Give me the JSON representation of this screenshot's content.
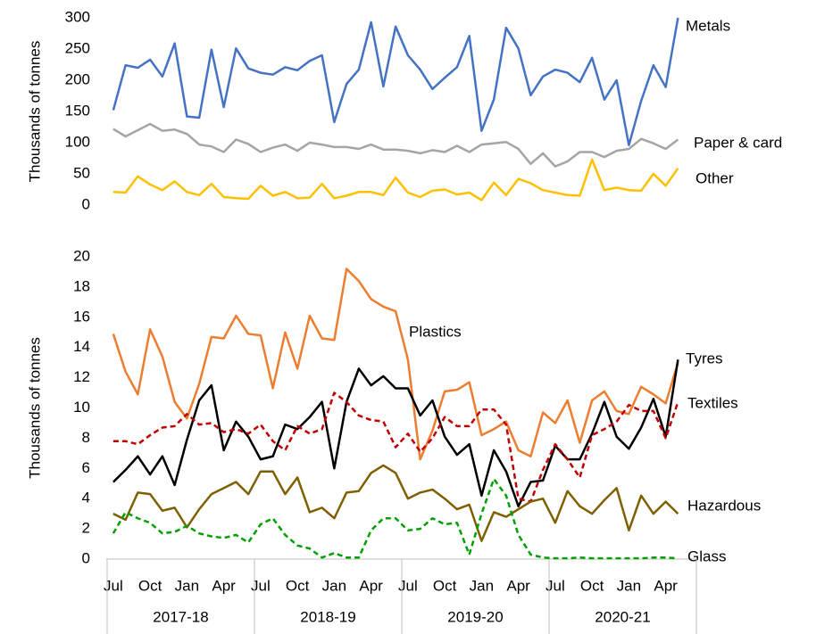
{
  "chart_data": [
    {
      "type": "line",
      "ylabel": "Thousands of tonnes",
      "ylim": [
        0,
        300
      ],
      "yticks": [
        0,
        50,
        100,
        150,
        200,
        250,
        300
      ],
      "grid": false,
      "series": [
        {
          "name": "Metals",
          "color": "#4472c4",
          "dash": false,
          "values": [
            152,
            224,
            220,
            233,
            206,
            259,
            142,
            140,
            249,
            157,
            251,
            219,
            212,
            209,
            221,
            216,
            231,
            240,
            133,
            194,
            217,
            293,
            190,
            286,
            240,
            217,
            186,
            204,
            221,
            271,
            119,
            169,
            284,
            251,
            176,
            206,
            217,
            212,
            197,
            236,
            169,
            200,
            96,
            167,
            224,
            189,
            300
          ]
        },
        {
          "name": "Paper & card",
          "color": "#a5a5a5",
          "dash": false,
          "values": [
            122,
            110,
            120,
            130,
            119,
            121,
            114,
            97,
            94,
            85,
            105,
            98,
            85,
            92,
            97,
            87,
            100,
            97,
            93,
            93,
            90,
            97,
            89,
            89,
            87,
            83,
            88,
            85,
            95,
            85,
            97,
            99,
            101,
            90,
            66,
            83,
            62,
            70,
            85,
            85,
            77,
            87,
            90,
            106,
            99,
            90,
            105
          ]
        },
        {
          "name": "Other",
          "color": "#ffc000",
          "dash": false,
          "values": [
            21,
            20,
            46,
            33,
            24,
            38,
            21,
            16,
            34,
            13,
            11,
            10,
            31,
            15,
            21,
            11,
            12,
            34,
            11,
            15,
            21,
            21,
            16,
            44,
            20,
            13,
            23,
            25,
            17,
            20,
            8,
            36,
            16,
            42,
            35,
            24,
            20,
            16,
            15,
            73,
            24,
            28,
            24,
            23,
            50,
            31,
            59
          ]
        }
      ]
    },
    {
      "type": "line",
      "ylabel": "Thousands of tonnes",
      "ylim": [
        0,
        20
      ],
      "yticks": [
        0,
        2,
        4,
        6,
        8,
        10,
        12,
        14,
        16,
        18,
        20
      ],
      "grid": false,
      "categories": [
        "Jul",
        null,
        null,
        "Oct",
        null,
        null,
        "Jan",
        null,
        null,
        "Apr",
        null,
        null,
        "Jul",
        null,
        null,
        "Oct",
        null,
        null,
        "Jan",
        null,
        null,
        "Apr",
        null,
        null,
        "Jul",
        null,
        null,
        "Oct",
        null,
        null,
        "Jan",
        null,
        null,
        "Apr",
        null,
        null,
        "Jul",
        null,
        null,
        "Oct",
        null,
        null,
        "Jan",
        null,
        null,
        "Apr",
        null
      ],
      "x_groups": [
        "2017-18",
        "2018-19",
        "2019-20",
        "2020-21"
      ],
      "series": [
        {
          "name": "Plastics",
          "color": "#ed7d31",
          "dash": false,
          "values": [
            14.9,
            12.4,
            10.9,
            15.2,
            13.4,
            10.4,
            9.3,
            11.6,
            14.7,
            14.6,
            16.1,
            14.9,
            14.8,
            11.3,
            15.0,
            12.6,
            16.1,
            14.6,
            14.5,
            19.2,
            18.4,
            17.2,
            16.7,
            16.4,
            13.2,
            6.6,
            8.5,
            11.1,
            11.2,
            11.7,
            8.2,
            8.6,
            9.1,
            7.2,
            6.8,
            9.7,
            9.0,
            10.5,
            7.7,
            10.5,
            11.1,
            9.8,
            9.6,
            11.4,
            10.9,
            10.3,
            13.0
          ]
        },
        {
          "name": "Tyres",
          "color": "#000000",
          "dash": false,
          "values": [
            5.1,
            5.9,
            6.8,
            5.6,
            6.8,
            4.9,
            7.9,
            10.5,
            11.5,
            7.2,
            9.1,
            8.1,
            6.6,
            6.8,
            8.9,
            8.6,
            9.4,
            10.4,
            6.0,
            10.4,
            12.6,
            11.5,
            12.1,
            11.3,
            11.3,
            9.5,
            10.5,
            8.1,
            6.9,
            7.6,
            4.2,
            7.2,
            5.8,
            3.5,
            5.1,
            5.2,
            7.5,
            6.6,
            6.6,
            8.3,
            10.4,
            8.1,
            7.3,
            8.7,
            10.6,
            8.1,
            13.2
          ]
        },
        {
          "name": "Textiles",
          "color": "#c00000",
          "dash": true,
          "values": [
            7.8,
            7.8,
            7.6,
            8.2,
            8.7,
            8.8,
            9.6,
            8.9,
            9.0,
            8.4,
            8.6,
            8.3,
            8.9,
            7.8,
            7.2,
            8.8,
            8.3,
            8.6,
            11.0,
            10.4,
            9.5,
            9.2,
            9.1,
            7.4,
            8.3,
            7.1,
            8.0,
            9.4,
            8.8,
            8.8,
            9.9,
            9.9,
            8.9,
            4.0,
            3.8,
            5.9,
            7.6,
            6.6,
            5.4,
            8.2,
            8.6,
            9.1,
            10.2,
            9.8,
            9.8,
            8.0,
            10.4
          ]
        },
        {
          "name": "Hazardous",
          "color": "#7f6000",
          "dash": false,
          "values": [
            3.0,
            2.6,
            4.4,
            4.3,
            3.2,
            3.4,
            2.1,
            3.3,
            4.3,
            4.7,
            5.1,
            4.3,
            5.8,
            5.8,
            4.3,
            5.4,
            3.1,
            3.4,
            2.7,
            4.4,
            4.5,
            5.7,
            6.2,
            5.7,
            4.0,
            4.4,
            4.6,
            4.0,
            3.3,
            3.6,
            1.2,
            3.1,
            2.8,
            3.3,
            3.8,
            4.0,
            2.4,
            4.5,
            3.5,
            3.0,
            3.9,
            4.7,
            1.9,
            4.2,
            3.0,
            3.8,
            3.0
          ]
        },
        {
          "name": "Glass",
          "color": "#00a000",
          "dash": true,
          "values": [
            1.7,
            3.1,
            2.7,
            2.4,
            1.7,
            1.8,
            2.2,
            1.7,
            1.5,
            1.4,
            1.6,
            1.1,
            2.3,
            2.7,
            1.6,
            0.9,
            0.7,
            0.1,
            0.4,
            0.1,
            0.1,
            1.9,
            2.7,
            2.7,
            1.9,
            2.0,
            2.7,
            2.3,
            2.4,
            0.3,
            3.0,
            5.3,
            4.2,
            1.6,
            0.3,
            0.1,
            0.05,
            0.05,
            0.1,
            0.05,
            0.05,
            0.05,
            0.05,
            0.05,
            0.1,
            0.1,
            0.05
          ]
        }
      ]
    }
  ]
}
